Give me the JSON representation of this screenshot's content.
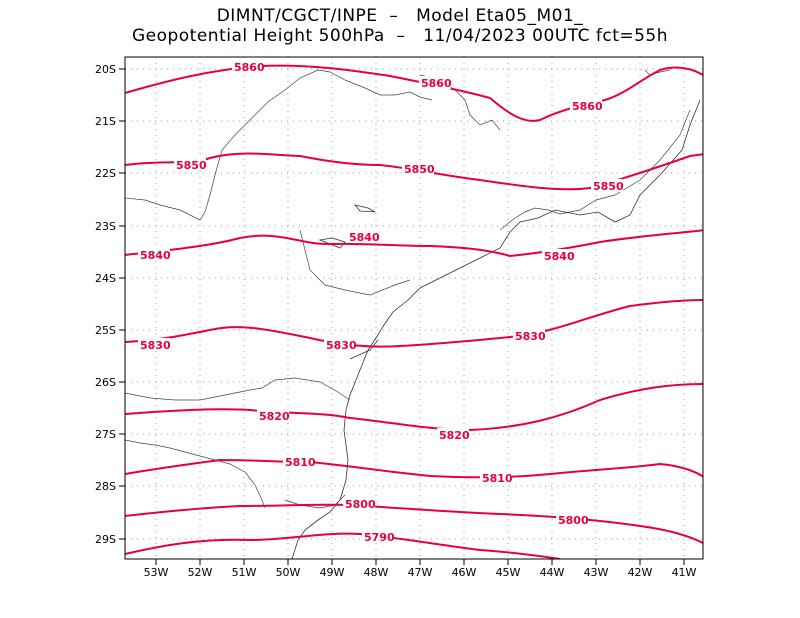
{
  "header": {
    "line1": "DIMNT/CGCT/INPE  –   Model Eta05_M01_",
    "line2": "Geopotential Height 500hPa  –   11/04/2023 00UTC fct=55h"
  },
  "map": {
    "lat_labels": [
      "20S",
      "21S",
      "22S",
      "23S",
      "24S",
      "25S",
      "26S",
      "27S",
      "28S",
      "29S"
    ],
    "lon_labels": [
      "53W",
      "52W",
      "51W",
      "50W",
      "49W",
      "48W",
      "47W",
      "46W",
      "45W",
      "44W",
      "43W",
      "42W",
      "41W"
    ],
    "lon_range": [
      -53.6,
      -40.5
    ],
    "lat_range": [
      -29.4,
      -19.8
    ],
    "contour_color": "#e8003c",
    "grid": "dotted"
  },
  "contours": [
    {
      "value": "5860",
      "labels": [
        "5860",
        "5860",
        "5860"
      ]
    },
    {
      "value": "5850",
      "labels": [
        "5850",
        "5850",
        "5850"
      ]
    },
    {
      "value": "5840",
      "labels": [
        "5840",
        "5840",
        "5840"
      ]
    },
    {
      "value": "5830",
      "labels": [
        "5830",
        "5830",
        "5830"
      ]
    },
    {
      "value": "5820",
      "labels": [
        "5820",
        "5820"
      ]
    },
    {
      "value": "5810",
      "labels": [
        "5810",
        "5810"
      ]
    },
    {
      "value": "5800",
      "labels": [
        "5800",
        "5800"
      ]
    },
    {
      "value": "5790",
      "labels": [
        "5790"
      ]
    }
  ]
}
